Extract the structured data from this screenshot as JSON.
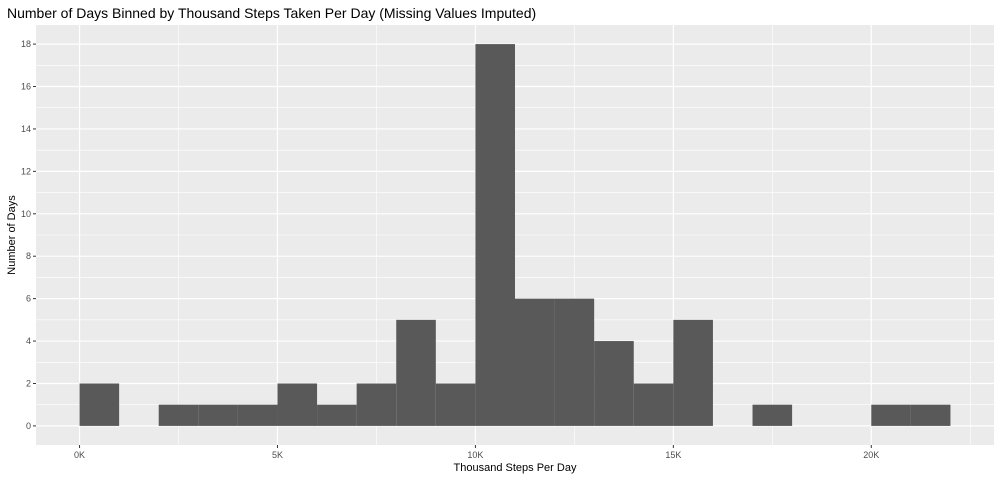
{
  "chart_data": {
    "type": "bar",
    "title": "Number of Days Binned by Thousand Steps Taken Per Day (Missing Values Imputed)",
    "xlabel": "Thousand Steps Per Day",
    "ylabel": "Number of Days",
    "xlim": [
      -1100,
      23100
    ],
    "ylim": [
      -0.9,
      18.9
    ],
    "x_ticks": [
      0,
      5000,
      10000,
      15000,
      20000
    ],
    "x_tick_labels": [
      "0K",
      "5K",
      "10K",
      "15K",
      "20K"
    ],
    "y_ticks": [
      0,
      2,
      4,
      6,
      8,
      10,
      12,
      14,
      16,
      18
    ],
    "y_tick_labels": [
      "0",
      "2",
      "4",
      "6",
      "8",
      "10",
      "12",
      "14",
      "16",
      "18"
    ],
    "bin_width": 1000,
    "bins": [
      {
        "start": 0,
        "end": 1000,
        "count": 2
      },
      {
        "start": 1000,
        "end": 2000,
        "count": 0
      },
      {
        "start": 2000,
        "end": 3000,
        "count": 1
      },
      {
        "start": 3000,
        "end": 4000,
        "count": 1
      },
      {
        "start": 4000,
        "end": 5000,
        "count": 1
      },
      {
        "start": 5000,
        "end": 6000,
        "count": 2
      },
      {
        "start": 6000,
        "end": 7000,
        "count": 1
      },
      {
        "start": 7000,
        "end": 8000,
        "count": 2
      },
      {
        "start": 8000,
        "end": 9000,
        "count": 5
      },
      {
        "start": 9000,
        "end": 10000,
        "count": 2
      },
      {
        "start": 10000,
        "end": 11000,
        "count": 18
      },
      {
        "start": 11000,
        "end": 12000,
        "count": 6
      },
      {
        "start": 12000,
        "end": 13000,
        "count": 6
      },
      {
        "start": 13000,
        "end": 14000,
        "count": 4
      },
      {
        "start": 14000,
        "end": 15000,
        "count": 2
      },
      {
        "start": 15000,
        "end": 16000,
        "count": 5
      },
      {
        "start": 16000,
        "end": 17000,
        "count": 0
      },
      {
        "start": 17000,
        "end": 18000,
        "count": 1
      },
      {
        "start": 18000,
        "end": 19000,
        "count": 0
      },
      {
        "start": 19000,
        "end": 20000,
        "count": 0
      },
      {
        "start": 20000,
        "end": 21000,
        "count": 1
      },
      {
        "start": 21000,
        "end": 22000,
        "count": 1
      }
    ],
    "bar_color": "#595959",
    "panel_background": "#ebebeb",
    "grid": true,
    "grid_color": "#ffffff",
    "legend": "none"
  }
}
